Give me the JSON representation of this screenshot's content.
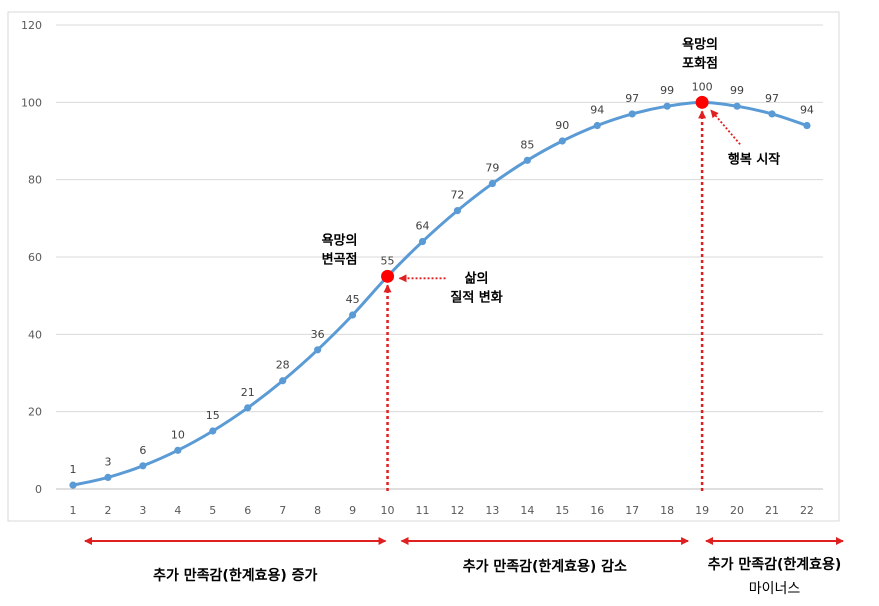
{
  "chart_data": {
    "type": "line",
    "x": [
      1,
      2,
      3,
      4,
      5,
      6,
      7,
      8,
      9,
      10,
      11,
      12,
      13,
      14,
      15,
      16,
      17,
      18,
      19,
      20,
      21,
      22
    ],
    "series": [
      {
        "values": [
          1,
          3,
          6,
          10,
          15,
          21,
          28,
          36,
          45,
          55,
          64,
          72,
          79,
          85,
          90,
          94,
          97,
          99,
          100,
          99,
          97,
          94
        ]
      }
    ],
    "ylim": [
      0,
      120
    ],
    "yticks": [
      0,
      20,
      40,
      60,
      80,
      100,
      120
    ],
    "grid": true,
    "colors": {
      "line": "#5b9bd5",
      "highlight": "#ff0000",
      "arrow": "#e02020",
      "grid": "#d9d9d9"
    },
    "highlight_points": [
      {
        "x": 10,
        "y": 55,
        "label_lines": [
          "욕망의",
          "변곡점"
        ],
        "pointer_lines": [
          "삶의",
          "질적 변화"
        ]
      },
      {
        "x": 19,
        "y": 100,
        "label_lines": [
          "욕망의",
          "포화점"
        ],
        "pointer_lines": [
          "행복 시작"
        ]
      }
    ],
    "regions": [
      {
        "from": 1,
        "to": 10,
        "lines": [
          "추가 만족감(한계효용) 증가"
        ]
      },
      {
        "from": 11,
        "to": 19,
        "lines": [
          "추가 만족감(한계효용) 감소"
        ]
      },
      {
        "from": 20,
        "to": 22,
        "lines": [
          "추가 만족감(한계효용)",
          "마이너스"
        ]
      }
    ]
  }
}
